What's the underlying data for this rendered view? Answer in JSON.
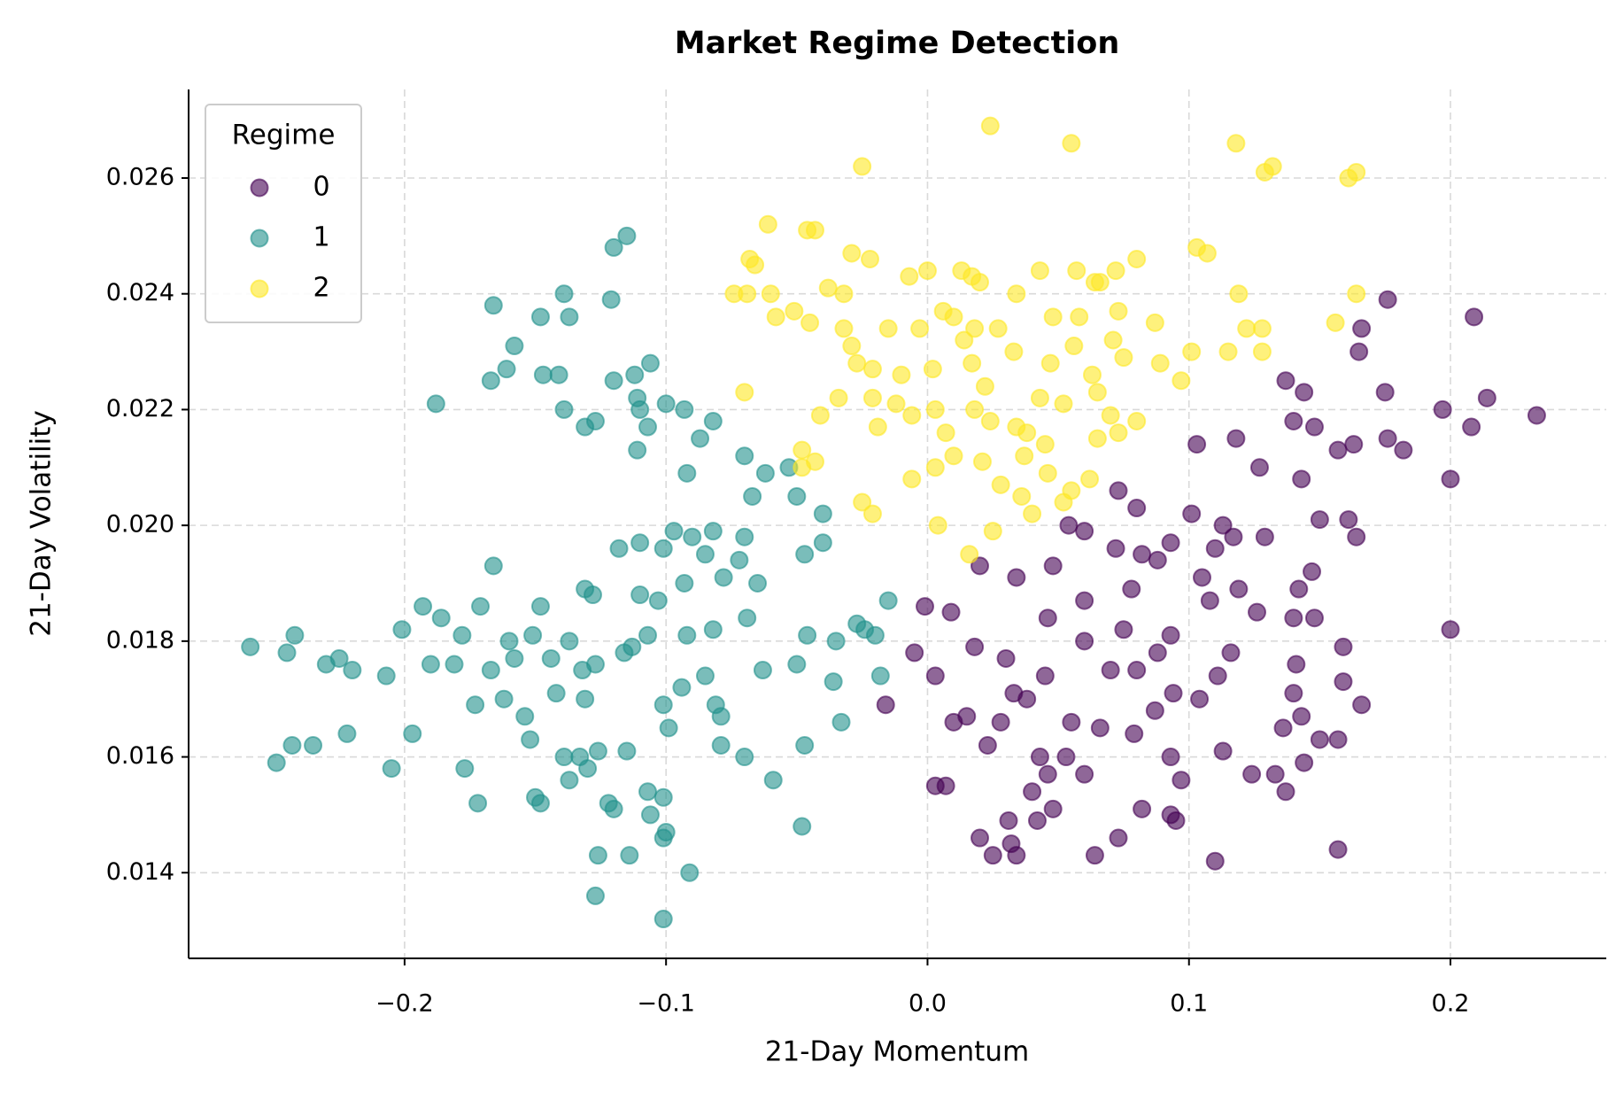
{
  "chart_data": {
    "type": "scatter",
    "title": "Market Regime Detection",
    "x_label": "21-Day Momentum",
    "y_label": "21-Day Volatility",
    "xlim": [
      -0.2826,
      0.2596
    ],
    "ylim": [
      0.01252,
      0.02753
    ],
    "xticks": [
      {
        "value": -0.2,
        "label": "−0.2"
      },
      {
        "value": -0.1,
        "label": "−0.1"
      },
      {
        "value": 0,
        "label": "0.0"
      },
      0.1,
      0.2
    ],
    "yticks": [
      0.014,
      0.016,
      0.018,
      {
        "value": 0.02,
        "label": "0.020"
      },
      0.022,
      0.024,
      0.026
    ],
    "grid": true,
    "legend": "upper left",
    "legend_title": "Regime",
    "alpha": 0.6,
    "series": [
      {
        "name": "0",
        "color": "#440154",
        "x": [
          0.176,
          0.209,
          0.166,
          0.165,
          0.214,
          0.233,
          0.175,
          0.137,
          0.144,
          0.148,
          0.14,
          0.197,
          0.208,
          0.176,
          0.182,
          0.118,
          0.103,
          0.157,
          0.163,
          0.143,
          0.127,
          0.2,
          0.073,
          0.08,
          0.101,
          0.113,
          0.054,
          0.15,
          0.161,
          0.129,
          0.164,
          0.06,
          0.072,
          0.088,
          0.093,
          0.11,
          0.117,
          0.048,
          0.02,
          0.034,
          0.082,
          0.105,
          0.119,
          0.147,
          0.142,
          0.06,
          0.078,
          0.108,
          -0.001,
          0.009,
          0.046,
          0.126,
          0.14,
          0.148,
          0.2,
          0.093,
          0.06,
          0.075,
          0.018,
          -0.005,
          0.03,
          0.088,
          0.116,
          0.141,
          0.159,
          0.003,
          0.07,
          0.08,
          0.111,
          0.14,
          0.159,
          0.045,
          -0.016,
          0.033,
          0.038,
          0.087,
          0.094,
          0.104,
          0.143,
          0.166,
          0.01,
          0.015,
          0.028,
          0.055,
          0.066,
          0.079,
          0.136,
          0.15,
          0.157,
          0.023,
          0.043,
          0.053,
          0.093,
          0.113,
          0.144,
          0.003,
          0.007,
          0.046,
          0.06,
          0.097,
          0.124,
          0.133,
          0.137,
          0.04,
          0.048,
          0.082,
          0.093,
          0.031,
          0.042,
          0.02,
          0.032,
          0.073,
          0.025,
          0.034,
          0.064,
          0.11,
          0.157,
          0.095
        ],
        "values": [
          0.0239,
          0.0236,
          0.0234,
          0.023,
          0.0222,
          0.0219,
          0.0223,
          0.0225,
          0.0223,
          0.0217,
          0.0218,
          0.022,
          0.0217,
          0.0215,
          0.0213,
          0.0215,
          0.0214,
          0.0213,
          0.0214,
          0.0208,
          0.021,
          0.0208,
          0.0206,
          0.0203,
          0.0202,
          0.02,
          0.02,
          0.0201,
          0.0201,
          0.0198,
          0.0198,
          0.0199,
          0.0196,
          0.0194,
          0.0197,
          0.0196,
          0.0198,
          0.0193,
          0.0193,
          0.0191,
          0.0195,
          0.0191,
          0.0189,
          0.0192,
          0.0189,
          0.0187,
          0.0189,
          0.0187,
          0.0186,
          0.0185,
          0.0184,
          0.0185,
          0.0184,
          0.0184,
          0.0182,
          0.0181,
          0.018,
          0.0182,
          0.0179,
          0.0178,
          0.0177,
          0.0178,
          0.0178,
          0.0176,
          0.0179,
          0.0174,
          0.0175,
          0.0175,
          0.0174,
          0.0171,
          0.0173,
          0.0174,
          0.0169,
          0.0171,
          0.017,
          0.0168,
          0.0171,
          0.017,
          0.0167,
          0.0169,
          0.0166,
          0.0167,
          0.0166,
          0.0166,
          0.0165,
          0.0164,
          0.0165,
          0.0163,
          0.0163,
          0.0162,
          0.016,
          0.016,
          0.016,
          0.0161,
          0.0159,
          0.0155,
          0.0155,
          0.0157,
          0.0157,
          0.0156,
          0.0157,
          0.0157,
          0.0154,
          0.0154,
          0.0151,
          0.0151,
          0.015,
          0.0149,
          0.0149,
          0.0146,
          0.0145,
          0.0146,
          0.0143,
          0.0143,
          0.0143,
          0.0142,
          0.0144,
          0.0149
        ]
      },
      {
        "name": "1",
        "color": "#21918c",
        "x": [
          -0.115,
          -0.12,
          -0.139,
          -0.121,
          -0.166,
          -0.148,
          -0.137,
          -0.158,
          -0.161,
          -0.167,
          -0.147,
          -0.141,
          -0.12,
          -0.112,
          -0.106,
          -0.188,
          -0.111,
          -0.11,
          -0.1,
          -0.093,
          -0.139,
          -0.127,
          -0.131,
          -0.107,
          -0.087,
          -0.082,
          -0.111,
          -0.07,
          -0.062,
          -0.053,
          -0.092,
          -0.067,
          -0.05,
          -0.04,
          -0.097,
          -0.082,
          -0.07,
          -0.11,
          -0.09,
          -0.047,
          -0.04,
          -0.085,
          -0.118,
          -0.166,
          -0.072,
          -0.101,
          -0.078,
          -0.093,
          -0.065,
          -0.131,
          -0.11,
          -0.128,
          -0.015,
          -0.193,
          -0.171,
          -0.148,
          -0.103,
          -0.069,
          -0.186,
          -0.027,
          -0.082,
          -0.201,
          -0.178,
          -0.151,
          -0.107,
          -0.092,
          -0.046,
          -0.024,
          -0.02,
          -0.242,
          -0.259,
          -0.16,
          -0.137,
          -0.113,
          -0.035,
          -0.245,
          -0.225,
          -0.158,
          -0.144,
          -0.116,
          -0.05,
          -0.23,
          -0.22,
          -0.19,
          -0.181,
          -0.167,
          -0.132,
          -0.127,
          -0.063,
          -0.207,
          -0.085,
          -0.036,
          -0.018,
          -0.142,
          -0.162,
          -0.131,
          -0.094,
          -0.081,
          -0.173,
          -0.101,
          -0.154,
          -0.079,
          -0.197,
          -0.099,
          -0.033,
          -0.243,
          -0.235,
          -0.222,
          -0.152,
          -0.115,
          -0.079,
          -0.047,
          -0.249,
          -0.139,
          -0.133,
          -0.126,
          -0.07,
          -0.205,
          -0.177,
          -0.13,
          -0.137,
          -0.059,
          -0.107,
          -0.101,
          -0.15,
          -0.148,
          -0.172,
          -0.122,
          -0.12,
          -0.106,
          -0.048,
          -0.1,
          -0.101,
          -0.126,
          -0.114,
          -0.091,
          -0.127,
          -0.101
        ],
        "values": [
          0.025,
          0.0248,
          0.024,
          0.0239,
          0.0238,
          0.0236,
          0.0236,
          0.0231,
          0.0227,
          0.0225,
          0.0226,
          0.0226,
          0.0225,
          0.0226,
          0.0228,
          0.0221,
          0.0222,
          0.022,
          0.0221,
          0.022,
          0.022,
          0.0218,
          0.0217,
          0.0217,
          0.0215,
          0.0218,
          0.0213,
          0.0212,
          0.0209,
          0.021,
          0.0209,
          0.0205,
          0.0205,
          0.0202,
          0.0199,
          0.0199,
          0.0198,
          0.0197,
          0.0198,
          0.0195,
          0.0197,
          0.0195,
          0.0196,
          0.0193,
          0.0194,
          0.0196,
          0.0191,
          0.019,
          0.019,
          0.0189,
          0.0188,
          0.0188,
          0.0187,
          0.0186,
          0.0186,
          0.0186,
          0.0187,
          0.0184,
          0.0184,
          0.0183,
          0.0182,
          0.0182,
          0.0181,
          0.0181,
          0.0181,
          0.0181,
          0.0181,
          0.0182,
          0.0181,
          0.0181,
          0.0179,
          0.018,
          0.018,
          0.0179,
          0.018,
          0.0178,
          0.0177,
          0.0177,
          0.0177,
          0.0178,
          0.0176,
          0.0176,
          0.0175,
          0.0176,
          0.0176,
          0.0175,
          0.0175,
          0.0176,
          0.0175,
          0.0174,
          0.0174,
          0.0173,
          0.0174,
          0.0171,
          0.017,
          0.017,
          0.0172,
          0.0169,
          0.0169,
          0.0169,
          0.0167,
          0.0167,
          0.0164,
          0.0165,
          0.0166,
          0.0162,
          0.0162,
          0.0164,
          0.0163,
          0.0161,
          0.0162,
          0.0162,
          0.0159,
          0.016,
          0.016,
          0.0161,
          0.016,
          0.0158,
          0.0158,
          0.0158,
          0.0156,
          0.0156,
          0.0154,
          0.0153,
          0.0153,
          0.0152,
          0.0152,
          0.0152,
          0.0151,
          0.015,
          0.0148,
          0.0147,
          0.0146,
          0.0143,
          0.0143,
          0.014,
          0.0136,
          0.0132
        ]
      },
      {
        "name": "2",
        "color": "#fde725",
        "x": [
          0.024,
          0.118,
          0.055,
          -0.025,
          0.132,
          0.129,
          0.164,
          0.161,
          -0.061,
          -0.046,
          -0.043,
          0.103,
          0.107,
          -0.068,
          -0.029,
          -0.022,
          -0.066,
          0.08,
          0.013,
          0.057,
          0.043,
          -0.007,
          0,
          0.017,
          0.064,
          0.072,
          0.066,
          -0.069,
          -0.074,
          -0.06,
          -0.038,
          -0.032,
          0.02,
          0.034,
          0.119,
          0.164,
          -0.051,
          -0.058,
          -0.045,
          -0.032,
          0.006,
          0.01,
          0.048,
          0.058,
          0.073,
          0.156,
          -0.029,
          -0.015,
          -0.003,
          0.018,
          0.027,
          0.087,
          0.122,
          0.128,
          0.014,
          0.033,
          0.056,
          0.071,
          0.101,
          0.115,
          -0.027,
          -0.021,
          -0.01,
          0.002,
          0.017,
          0.047,
          0.063,
          0.075,
          0.089,
          0.128,
          -0.07,
          -0.034,
          -0.021,
          -0.012,
          0.022,
          0.065,
          0.097,
          -0.041,
          -0.006,
          0.003,
          0.018,
          0.024,
          0.043,
          0.052,
          0.07,
          0.08,
          -0.048,
          -0.019,
          0.007,
          0.034,
          0.038,
          0.073,
          0.045,
          0.01,
          0.021,
          0.037,
          0.065,
          -0.043,
          -0.048,
          0.003,
          0.046,
          0.062,
          -0.006,
          0.028,
          0.055,
          -0.025,
          0.036,
          -0.021,
          0.04,
          0.052,
          0.004,
          0.025,
          0.016
        ],
        "values": [
          0.0269,
          0.0266,
          0.0266,
          0.0262,
          0.0262,
          0.0261,
          0.0261,
          0.026,
          0.0252,
          0.0251,
          0.0251,
          0.0248,
          0.0247,
          0.0246,
          0.0247,
          0.0246,
          0.0245,
          0.0246,
          0.0244,
          0.0244,
          0.0244,
          0.0243,
          0.0244,
          0.0243,
          0.0242,
          0.0244,
          0.0242,
          0.024,
          0.024,
          0.024,
          0.0241,
          0.024,
          0.0242,
          0.024,
          0.024,
          0.024,
          0.0237,
          0.0236,
          0.0235,
          0.0234,
          0.0237,
          0.0236,
          0.0236,
          0.0236,
          0.0237,
          0.0235,
          0.0231,
          0.0234,
          0.0234,
          0.0234,
          0.0234,
          0.0235,
          0.0234,
          0.0234,
          0.0232,
          0.023,
          0.0231,
          0.0232,
          0.023,
          0.023,
          0.0228,
          0.0227,
          0.0226,
          0.0227,
          0.0228,
          0.0228,
          0.0226,
          0.0229,
          0.0228,
          0.023,
          0.0223,
          0.0222,
          0.0222,
          0.0221,
          0.0224,
          0.0223,
          0.0225,
          0.0219,
          0.0219,
          0.022,
          0.022,
          0.0218,
          0.0222,
          0.0221,
          0.0219,
          0.0218,
          0.0213,
          0.0217,
          0.0216,
          0.0217,
          0.0216,
          0.0216,
          0.0214,
          0.0212,
          0.0211,
          0.0212,
          0.0215,
          0.0211,
          0.021,
          0.021,
          0.0209,
          0.0208,
          0.0208,
          0.0207,
          0.0206,
          0.0204,
          0.0205,
          0.0202,
          0.0202,
          0.0204,
          0.02,
          0.0199,
          0.0195
        ]
      }
    ]
  }
}
